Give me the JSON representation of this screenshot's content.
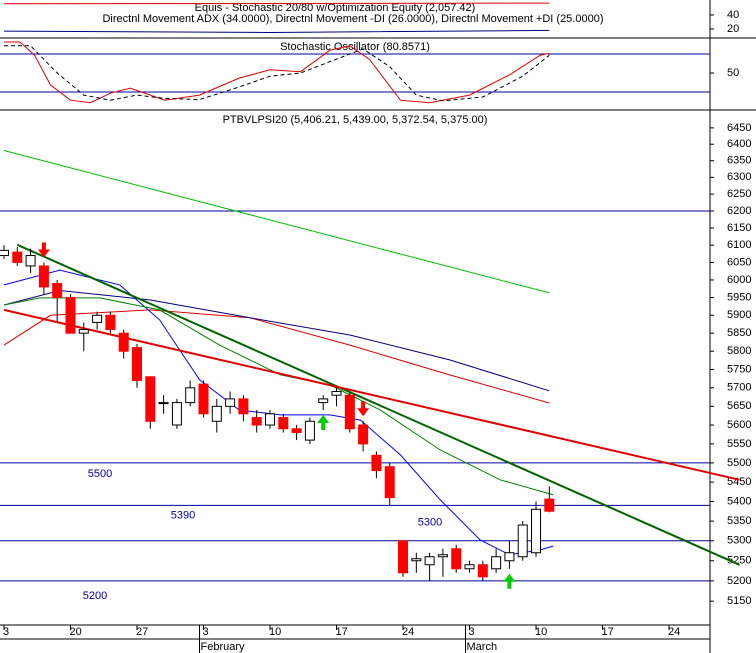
{
  "chart_data": [
    {
      "type": "line",
      "title": "Equis - Stochastic 20/80  w/Optimization Equity (2,057.42)",
      "subtitle": "Directnl Movement ADX (34.0000), Directnl Movement -DI (26.0000), Directnl Movement +DI (25.0000)",
      "ylim": [
        7.1,
        61.4
      ],
      "yticks": [
        40,
        20
      ],
      "series": [
        {
          "color": "#e00000",
          "width": 1,
          "x": [
            0,
            41
          ],
          "values": [
            56,
            57
          ]
        },
        {
          "color": "#000080",
          "width": 1,
          "x": [
            0,
            20,
            41
          ],
          "values": [
            17,
            15,
            18
          ]
        }
      ]
    },
    {
      "type": "line",
      "title": "Stochastic Oscillator (80.8571)",
      "ylim": [
        -8.5,
        105.3
      ],
      "yticks": [
        50
      ],
      "levels": [
        80,
        20
      ],
      "level_color": "#0000a0",
      "series": [
        {
          "color": "#e00000",
          "width": 1,
          "x": [
            0,
            1.2,
            2.3,
            3.5,
            5,
            6.5,
            8,
            9.5,
            12.1,
            14.7,
            17.7,
            20,
            22.3,
            24.5,
            26,
            27.5,
            29.8,
            32,
            35,
            38,
            40.3,
            41
          ],
          "values": [
            99,
            99,
            78,
            31,
            7,
            3,
            18,
            26,
            7,
            15,
            42,
            55,
            52,
            86,
            93,
            71,
            7,
            3,
            15,
            47,
            78,
            81
          ]
        },
        {
          "color": "#000000",
          "width": 1,
          "dash": true,
          "x": [
            0,
            2,
            4,
            6,
            8,
            10,
            12,
            14.7,
            17.7,
            20,
            22.3,
            25,
            27,
            29,
            31,
            33,
            36,
            39,
            41
          ],
          "values": [
            93,
            93,
            50,
            15,
            7,
            15,
            10,
            8,
            28,
            45,
            50,
            72,
            88,
            60,
            15,
            6,
            12,
            45,
            78
          ]
        }
      ]
    },
    {
      "type": "candlestick",
      "title": "PTBVLPSI20 (5,406.21, 5,439.00, 5,372.54, 5,375.00)",
      "log_scale": true,
      "ylim": [
        5092,
        6505
      ],
      "yticks": [
        6450,
        6400,
        6350,
        6300,
        6250,
        6200,
        6150,
        6100,
        6050,
        6000,
        5950,
        5900,
        5850,
        5800,
        5750,
        5700,
        5650,
        5600,
        5550,
        5500,
        5450,
        5400,
        5350,
        5300,
        5250,
        5200,
        5150
      ],
      "xlim": [
        -0.3,
        53.08
      ],
      "xticks": [
        {
          "value": 0,
          "label": "3"
        },
        {
          "value": 5,
          "label": "20"
        },
        {
          "value": 10,
          "label": "27"
        },
        {
          "value": 15,
          "label": "3"
        },
        {
          "value": 20,
          "label": "10"
        },
        {
          "value": 25,
          "label": "17"
        },
        {
          "value": 30,
          "label": "24"
        },
        {
          "value": 35,
          "label": "3"
        },
        {
          "value": 40,
          "label": "10"
        },
        {
          "value": 45,
          "label": "17"
        },
        {
          "value": 50,
          "label": "24"
        }
      ],
      "months": [
        {
          "value": 15,
          "label": "February"
        },
        {
          "value": 35,
          "label": "March"
        }
      ],
      "up_color": "#ffffff",
      "down_color": "#ff0000",
      "candles": {
        "open": [
          6070,
          6080,
          6040,
          6040,
          5990,
          5950,
          5850,
          5880,
          5900,
          5850,
          5810,
          5730,
          5660,
          5600,
          5660,
          5710,
          5610,
          5650,
          5670,
          5620,
          5600,
          5620,
          5590,
          5560,
          5660,
          5680,
          5680,
          5600,
          5520,
          5490,
          5300,
          5250,
          5240,
          5260,
          5280,
          5230,
          5240,
          5230,
          5250,
          5260,
          5270,
          5406.21
        ],
        "high": [
          6100,
          6095,
          6090,
          6050,
          6000,
          5960,
          5880,
          5910,
          5910,
          5860,
          5820,
          5730,
          5680,
          5670,
          5720,
          5720,
          5670,
          5690,
          5680,
          5640,
          5640,
          5630,
          5600,
          5620,
          5680,
          5700,
          5690,
          5610,
          5530,
          5500,
          5300,
          5270,
          5270,
          5280,
          5290,
          5250,
          5250,
          5280,
          5300,
          5350,
          5400,
          5439
        ],
        "low": [
          6060,
          6040,
          6020,
          5960,
          5880,
          5850,
          5800,
          5860,
          5850,
          5780,
          5700,
          5590,
          5630,
          5590,
          5650,
          5620,
          5580,
          5630,
          5610,
          5580,
          5590,
          5580,
          5560,
          5550,
          5640,
          5650,
          5580,
          5530,
          5460,
          5390,
          5210,
          5220,
          5200,
          5210,
          5220,
          5220,
          5200,
          5220,
          5230,
          5250,
          5260,
          5372.54
        ],
        "close": [
          6085,
          6050,
          6070,
          5980,
          5950,
          5850,
          5860,
          5900,
          5860,
          5800,
          5720,
          5610,
          5660,
          5660,
          5700,
          5630,
          5650,
          5670,
          5630,
          5600,
          5630,
          5590,
          5580,
          5610,
          5670,
          5690,
          5590,
          5550,
          5480,
          5410,
          5220,
          5255,
          5260,
          5265,
          5230,
          5240,
          5210,
          5260,
          5270,
          5340,
          5380,
          5375
        ]
      },
      "hlines": [
        6200,
        5500,
        5390,
        5300,
        5200
      ],
      "hline_labeled": [
        false,
        true,
        true,
        true,
        true
      ],
      "hline_color": "#0000a0",
      "signals": [
        {
          "index": 3,
          "direction": "down"
        },
        {
          "index": 27,
          "direction": "down"
        },
        {
          "index": 24,
          "direction": "up"
        },
        {
          "index": 38,
          "direction": "up"
        }
      ],
      "signal_colors": {
        "down": "#ff0000",
        "up": "#00cc00"
      },
      "series": [
        {
          "color": "#00c000",
          "width": 1,
          "x": [
            0,
            41
          ],
          "values": [
            6381,
            5963
          ]
        },
        {
          "color": "#e00000",
          "width": 1,
          "x": [
            0,
            3.5,
            11,
            18.5,
            26,
            33.5,
            41
          ],
          "values": [
            5817,
            5900,
            5915,
            5893,
            5817,
            5735,
            5659
          ]
        },
        {
          "color": "#000080",
          "width": 1,
          "x": [
            0,
            4.2,
            11,
            18.5,
            26,
            33.5,
            41
          ],
          "values": [
            5929,
            5970,
            5943,
            5893,
            5845,
            5776,
            5692
          ]
        },
        {
          "color": "#0000ff",
          "width": 1,
          "x": [
            0,
            4.2,
            8.7,
            11.7,
            14.7,
            17.7,
            20.8,
            24.5,
            26.8,
            29.8,
            32.8,
            35.8,
            38,
            40.3,
            41.3
          ],
          "values": [
            5986,
            6028,
            5986,
            5887,
            5722,
            5640,
            5627,
            5627,
            5613,
            5521,
            5404,
            5302,
            5265,
            5277,
            5287
          ]
        },
        {
          "color": "#008000",
          "width": 1,
          "x": [
            0,
            2.7,
            7.2,
            11.7,
            16.2,
            20.8,
            24.5,
            28.3,
            32.8,
            37.3,
            41.3
          ],
          "values": [
            5929,
            5949,
            5949,
            5915,
            5817,
            5735,
            5708,
            5640,
            5534,
            5456,
            5417
          ]
        },
        {
          "color": "#006400",
          "width": 2,
          "x": [
            1,
            55.3
          ],
          "values": [
            6101,
            5240
          ]
        },
        {
          "color": "#e00000",
          "width": 2,
          "x": [
            0,
            55.3
          ],
          "values": [
            5915,
            5456
          ]
        }
      ]
    }
  ]
}
